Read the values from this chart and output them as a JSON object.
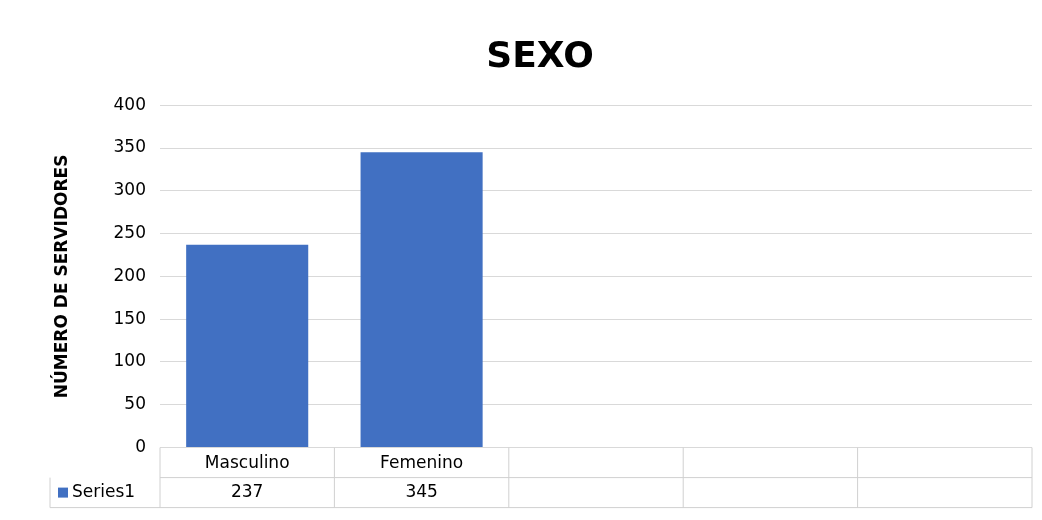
{
  "chart_data": {
    "type": "bar",
    "title": "SEXO",
    "ylabel": "NÚMERO DE SERVIDORES",
    "categories": [
      "Masculino",
      "Femenino",
      null,
      null,
      null
    ],
    "series": [
      {
        "name": "Series1",
        "color": "#4170c2",
        "values": [
          237,
          345,
          null,
          null,
          null
        ]
      }
    ],
    "ylim": [
      0,
      400
    ],
    "yticks": [
      0,
      50,
      100,
      150,
      200,
      250,
      300,
      350,
      400
    ],
    "grid": "y",
    "legend": "bottom",
    "data_labels": true
  }
}
